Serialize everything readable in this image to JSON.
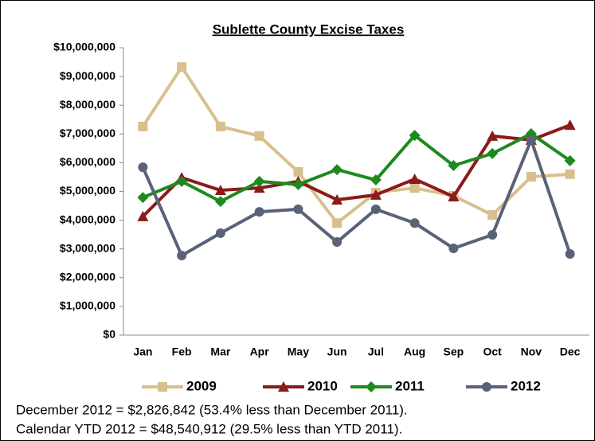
{
  "chart_data": {
    "type": "line",
    "title": "Sublette County Excise Taxes",
    "categories": [
      "Jan",
      "Feb",
      "Mar",
      "Apr",
      "May",
      "Jun",
      "Jul",
      "Aug",
      "Sep",
      "Oct",
      "Nov",
      "Dec"
    ],
    "series": [
      {
        "name": "2009",
        "color": "#d8c08e",
        "marker": "square",
        "values": [
          7260000,
          9330000,
          7260000,
          6930000,
          5680000,
          3900000,
          4960000,
          5120000,
          4850000,
          4180000,
          5510000,
          5600000
        ]
      },
      {
        "name": "2010",
        "color": "#8b1a1a",
        "marker": "triangle",
        "values": [
          4130000,
          5480000,
          5040000,
          5120000,
          5350000,
          4710000,
          4880000,
          5430000,
          4820000,
          6930000,
          6790000,
          7310000
        ]
      },
      {
        "name": "2011",
        "color": "#1e8a1e",
        "marker": "diamond",
        "values": [
          4790000,
          5350000,
          4650000,
          5350000,
          5240000,
          5760000,
          5400000,
          6950000,
          5900000,
          6320000,
          7010000,
          6070000
        ]
      },
      {
        "name": "2012",
        "color": "#5a6277",
        "marker": "circle",
        "values": [
          5840000,
          2770000,
          3550000,
          4290000,
          4380000,
          3240000,
          4380000,
          3900000,
          3020000,
          3490000,
          6790000,
          2826842
        ]
      }
    ],
    "ylim": [
      0,
      10000000
    ],
    "yticks": [
      {
        "value": 0,
        "label": "$0"
      },
      {
        "value": 1000000,
        "label": "$1,000,000"
      },
      {
        "value": 2000000,
        "label": "$2,000,000"
      },
      {
        "value": 3000000,
        "label": "$3,000,000"
      },
      {
        "value": 4000000,
        "label": "$4,000,000"
      },
      {
        "value": 5000000,
        "label": "$5,000,000"
      },
      {
        "value": 6000000,
        "label": "$6,000,000"
      },
      {
        "value": 7000000,
        "label": "$7,000,000"
      },
      {
        "value": 8000000,
        "label": "$8,000,000"
      },
      {
        "value": 9000000,
        "label": "$9,000,000"
      },
      {
        "value": 10000000,
        "label": "$10,000,000"
      }
    ],
    "grid": false,
    "legend": "bottom",
    "notes": [
      "December 2012 = $2,826,842 (53.4% less than December 2011).",
      "Calendar YTD 2012 = $48,540,912 (29.5% less than YTD 2011)."
    ]
  }
}
